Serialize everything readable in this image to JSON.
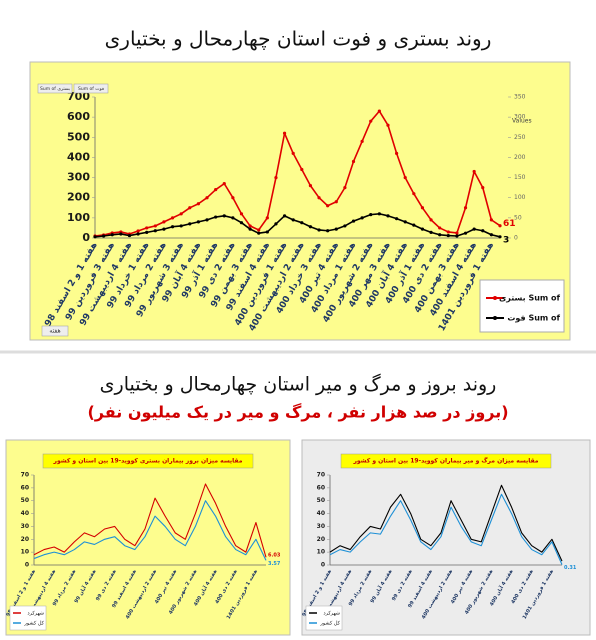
{
  "section_title": "روند بروز و مرگ و میر استان چهارمحال و بختیاری",
  "section_subtitle": "(بروز در صد هزار نفر ، مرگ و میر در یک میلیون نفر)",
  "chart_data": [
    {
      "type": "line",
      "title": "روند بستری و فوت استان چهارمحال و بختیاری",
      "legend_title": "Values",
      "filter_label": "هفته",
      "field_buttons": [
        "Sum of بستری",
        "Sum of فوت"
      ],
      "categories": [
        "هفته 1 و 2 اسفند 98",
        null,
        "هفته 3 فروردین 99",
        null,
        "هفته 4 اردیبهشت 99",
        null,
        "هفته 1 خرداد 99",
        null,
        "هفته 2 مرداد 99",
        null,
        "هفته 3 شهریور 99",
        null,
        "هفته 4 آبان 99",
        null,
        "هفته 1 آذر 99",
        null,
        "هفته 2 دی 99",
        null,
        "هفته 3 بهمن 99",
        null,
        "هفته 4 اسفند 99",
        null,
        "هفته 1 فروردین 400",
        null,
        "هفته 2 اردیبهشت 400",
        null,
        "هفته 3 خرداد 400",
        null,
        "هفته 4 تیر 400",
        null,
        "هفته 1 مرداد 400",
        null,
        "هفته 2 شهریور 400",
        null,
        "هفته 3 مهر 400",
        null,
        "هفته 4 آبان 400",
        null,
        "هفته 1 آذر 400",
        null,
        "هفته 2 دی 400",
        null,
        "هفته 3 بهمن 400",
        null,
        "هفته 4 اسفند 400",
        null,
        "هفته 1 فروردین 1401",
        null
      ],
      "series": [
        {
          "name": "بستری Sum of",
          "color": "#e00000",
          "axis": "y",
          "values": [
            10,
            15,
            25,
            30,
            20,
            35,
            50,
            60,
            80,
            100,
            120,
            150,
            170,
            200,
            240,
            270,
            200,
            120,
            60,
            40,
            100,
            300,
            520,
            420,
            340,
            260,
            200,
            160,
            180,
            250,
            380,
            480,
            580,
            630,
            560,
            420,
            300,
            220,
            150,
            90,
            50,
            30,
            25,
            150,
            330,
            250,
            90,
            61
          ]
        },
        {
          "name": "فوت Sum of",
          "color": "#000000",
          "axis": "y2",
          "values": [
            3,
            5,
            8,
            10,
            6,
            10,
            14,
            18,
            22,
            28,
            30,
            35,
            40,
            45,
            52,
            55,
            50,
            38,
            22,
            12,
            15,
            35,
            55,
            45,
            38,
            28,
            20,
            18,
            22,
            30,
            42,
            50,
            58,
            60,
            55,
            48,
            40,
            32,
            22,
            14,
            8,
            6,
            5,
            12,
            22,
            18,
            8,
            3
          ]
        }
      ],
      "ylim": [
        0,
        700
      ],
      "yticks": [
        0,
        100,
        200,
        300,
        400,
        500,
        600,
        700
      ],
      "y2lim": [
        0,
        350
      ],
      "y2ticks": [
        0,
        50,
        100,
        150,
        200,
        250,
        300,
        350
      ],
      "grid": false,
      "markers": true,
      "end_labels": true,
      "legend": "bottom-right"
    },
    {
      "type": "line",
      "title": "مقایسه میزان بروز بیماران بستری کووید-19 بین استان و کشور",
      "categories": [
        "هفته 1 و 2 اسفند 98",
        null,
        "هفته 4 اردیبهشت 99",
        null,
        "هفته 2 مرداد 99",
        null,
        "هفته 4 آبان 99",
        null,
        "هفته 2 دی 99",
        null,
        "هفته 4 اسفند 99",
        null,
        "هفته 2 اردیبهشت 400",
        null,
        "هفته 4 تیر 400",
        null,
        "هفته 2 شهریور 400",
        null,
        "هفته 4 آبان 400",
        null,
        "هفته 2 دی 400",
        null,
        "هفته 1 فروردین 1401",
        null
      ],
      "series": [
        {
          "name": "شهرکرد",
          "color": "#d40000",
          "values": [
            8,
            12,
            14,
            10,
            18,
            25,
            22,
            28,
            30,
            20,
            15,
            28,
            52,
            38,
            25,
            20,
            40,
            63,
            48,
            30,
            15,
            10,
            33,
            6.03
          ]
        },
        {
          "name": "کل کشور",
          "color": "#1e90d6",
          "values": [
            5,
            8,
            10,
            8,
            12,
            18,
            16,
            20,
            22,
            15,
            12,
            22,
            38,
            30,
            20,
            15,
            30,
            50,
            38,
            22,
            12,
            8,
            20,
            3.57
          ]
        }
      ],
      "ylim": [
        0,
        70
      ],
      "yticks": [
        0,
        10,
        20,
        30,
        40,
        50,
        60,
        70
      ],
      "grid": false,
      "markers": false,
      "end_labels": true,
      "legend": "bottom-left"
    },
    {
      "type": "line",
      "title": "مقایسه میزان مرگ و میر بیماران کووید-19 بین استان و کشور",
      "categories": [
        "هفته 1 و 2 اسفند 98",
        null,
        "هفته 4 اردیبهشت 99",
        null,
        "هفته 2 مرداد 99",
        null,
        "هفته 4 آبان 99",
        null,
        "هفته 2 دی 99",
        null,
        "هفته 4 اسفند 99",
        null,
        "هفته 2 اردیبهشت 400",
        null,
        "هفته 4 تیر 400",
        null,
        "هفته 2 شهریور 400",
        null,
        "هفته 4 آبان 400",
        null,
        "هفته 2 دی 400",
        null,
        "هفته 1 فروردین 1401",
        null
      ],
      "series": [
        {
          "name": "شهرکرد",
          "color": "#000000",
          "values": [
            10,
            15,
            12,
            22,
            30,
            28,
            45,
            55,
            40,
            20,
            15,
            25,
            50,
            35,
            20,
            18,
            40,
            62,
            45,
            25,
            15,
            10,
            20,
            3
          ]
        },
        {
          "name": "کل کشور",
          "color": "#1e90d6",
          "values": [
            8,
            12,
            10,
            18,
            25,
            24,
            38,
            50,
            35,
            18,
            12,
            22,
            45,
            30,
            18,
            15,
            35,
            55,
            40,
            22,
            12,
            8,
            18,
            0.31
          ]
        }
      ],
      "ylim": [
        0,
        70
      ],
      "yticks": [
        0,
        10,
        20,
        30,
        40,
        50,
        60,
        70
      ],
      "grid": false,
      "markers": false,
      "end_labels": "last-series",
      "legend": "bottom-left"
    }
  ]
}
